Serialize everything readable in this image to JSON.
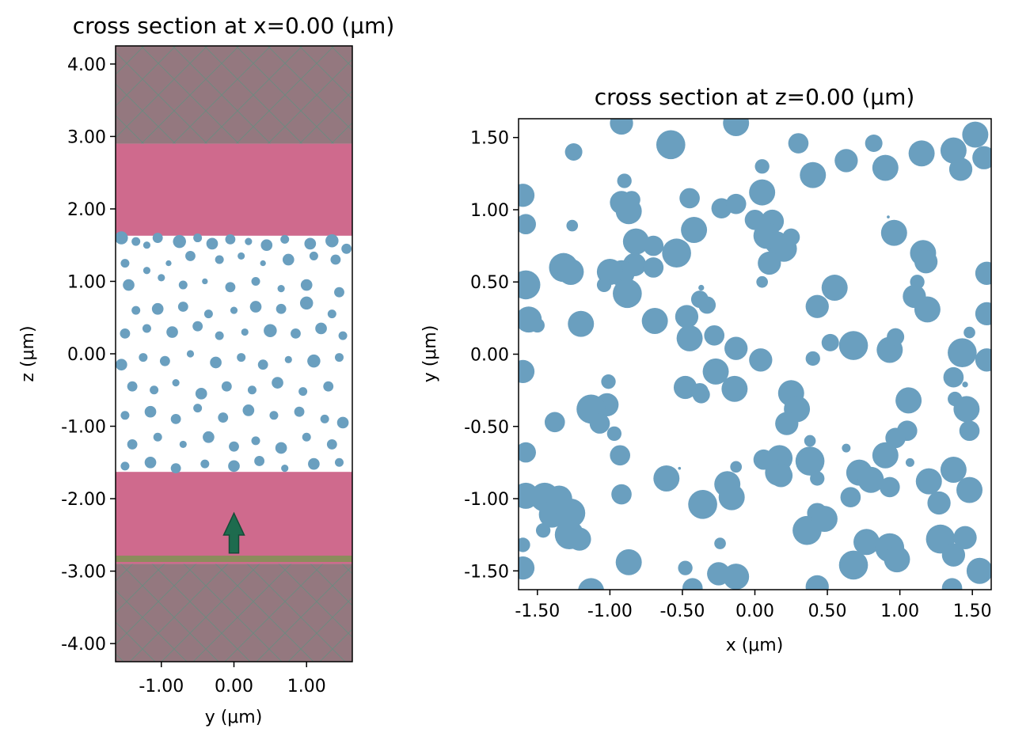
{
  "colors": {
    "circle": "#6a9fbf",
    "substrate": "#cf6a8d",
    "pml": "#94787f",
    "pml_hatch": "#5f8f7f",
    "source_line": "#8c8c5c",
    "source_arrow": "#1e6b4e"
  },
  "chart_data": [
    {
      "type": "scatter",
      "title": "cross section at x=0.00 (μm)",
      "xlabel": "y (μm)",
      "ylabel": "z (μm)",
      "xlim": [
        -1.63,
        1.63
      ],
      "ylim": [
        -4.25,
        4.25
      ],
      "xticks": [
        -1.0,
        0.0,
        1.0
      ],
      "xtick_labels": [
        "-1.00",
        "0.00",
        "1.00"
      ],
      "yticks": [
        4.0,
        3.0,
        2.0,
        1.0,
        0.0,
        -1.0,
        -2.0,
        -3.0,
        -4.0
      ],
      "ytick_labels": [
        "4.00",
        "3.00",
        "2.00",
        "1.00",
        "0.00",
        "-1.00",
        "-2.00",
        "-3.00",
        "-4.00"
      ],
      "regions": [
        {
          "kind": "pml",
          "y_from": 2.9,
          "y_to": 4.25
        },
        {
          "kind": "substrate",
          "y_from": 1.63,
          "y_to": 2.9
        },
        {
          "kind": "substrate",
          "y_from": -2.9,
          "y_to": -1.63
        },
        {
          "kind": "pml",
          "y_from": -4.25,
          "y_to": -2.9
        }
      ],
      "source": {
        "z": -2.83,
        "arrow_from": -2.75,
        "arrow_to": -2.2
      },
      "circles": [
        [
          -1.55,
          1.6,
          0.09
        ],
        [
          -1.35,
          1.55,
          0.06
        ],
        [
          -1.2,
          1.5,
          0.05
        ],
        [
          -1.05,
          1.6,
          0.07
        ],
        [
          -0.75,
          1.55,
          0.09
        ],
        [
          -0.5,
          1.6,
          0.06
        ],
        [
          -0.3,
          1.52,
          0.08
        ],
        [
          -0.05,
          1.58,
          0.07
        ],
        [
          0.2,
          1.55,
          0.05
        ],
        [
          0.45,
          1.5,
          0.08
        ],
        [
          0.7,
          1.58,
          0.06
        ],
        [
          1.05,
          1.52,
          0.08
        ],
        [
          1.35,
          1.56,
          0.09
        ],
        [
          1.55,
          1.45,
          0.07
        ],
        [
          -1.5,
          1.25,
          0.06
        ],
        [
          -1.2,
          1.15,
          0.05
        ],
        [
          -0.9,
          1.25,
          0.04
        ],
        [
          -0.6,
          1.35,
          0.07
        ],
        [
          -0.2,
          1.3,
          0.06
        ],
        [
          0.1,
          1.35,
          0.05
        ],
        [
          0.4,
          1.25,
          0.04
        ],
        [
          0.75,
          1.3,
          0.08
        ],
        [
          1.1,
          1.35,
          0.06
        ],
        [
          1.4,
          1.3,
          0.07
        ],
        [
          -1.45,
          0.95,
          0.08
        ],
        [
          -1.0,
          1.05,
          0.05
        ],
        [
          -0.7,
          0.95,
          0.06
        ],
        [
          -0.4,
          1.0,
          0.04
        ],
        [
          -0.05,
          0.92,
          0.07
        ],
        [
          0.3,
          1.0,
          0.06
        ],
        [
          0.65,
          0.9,
          0.05
        ],
        [
          1.0,
          0.95,
          0.08
        ],
        [
          1.45,
          0.85,
          0.07
        ],
        [
          -1.35,
          0.6,
          0.06
        ],
        [
          -1.05,
          0.62,
          0.08
        ],
        [
          -0.7,
          0.65,
          0.07
        ],
        [
          -0.35,
          0.55,
          0.06
        ],
        [
          0.0,
          0.6,
          0.05
        ],
        [
          0.3,
          0.65,
          0.08
        ],
        [
          0.65,
          0.62,
          0.07
        ],
        [
          1.0,
          0.7,
          0.09
        ],
        [
          1.35,
          0.55,
          0.06
        ],
        [
          -1.5,
          0.28,
          0.07
        ],
        [
          -1.2,
          0.35,
          0.06
        ],
        [
          -0.85,
          0.3,
          0.08
        ],
        [
          -0.5,
          0.38,
          0.07
        ],
        [
          -0.2,
          0.25,
          0.06
        ],
        [
          0.15,
          0.3,
          0.05
        ],
        [
          0.5,
          0.32,
          0.09
        ],
        [
          0.85,
          0.28,
          0.07
        ],
        [
          1.2,
          0.35,
          0.08
        ],
        [
          1.5,
          0.25,
          0.06
        ],
        [
          -1.55,
          -0.15,
          0.08
        ],
        [
          -1.25,
          -0.05,
          0.06
        ],
        [
          -0.95,
          -0.1,
          0.07
        ],
        [
          -0.6,
          0.0,
          0.05
        ],
        [
          -0.25,
          -0.12,
          0.08
        ],
        [
          0.1,
          -0.05,
          0.06
        ],
        [
          0.4,
          -0.15,
          0.07
        ],
        [
          0.75,
          -0.08,
          0.05
        ],
        [
          1.1,
          -0.1,
          0.09
        ],
        [
          1.45,
          -0.05,
          0.06
        ],
        [
          -1.4,
          -0.45,
          0.07
        ],
        [
          -1.1,
          -0.5,
          0.06
        ],
        [
          -0.8,
          -0.4,
          0.05
        ],
        [
          -0.45,
          -0.55,
          0.08
        ],
        [
          -0.1,
          -0.45,
          0.07
        ],
        [
          0.25,
          -0.5,
          0.06
        ],
        [
          0.6,
          -0.4,
          0.08
        ],
        [
          0.95,
          -0.52,
          0.06
        ],
        [
          1.3,
          -0.45,
          0.07
        ],
        [
          -1.5,
          -0.85,
          0.06
        ],
        [
          -1.15,
          -0.8,
          0.08
        ],
        [
          -0.8,
          -0.9,
          0.07
        ],
        [
          -0.5,
          -0.75,
          0.06
        ],
        [
          -0.15,
          -0.88,
          0.07
        ],
        [
          0.2,
          -0.78,
          0.08
        ],
        [
          0.55,
          -0.85,
          0.06
        ],
        [
          0.9,
          -0.8,
          0.07
        ],
        [
          1.25,
          -0.9,
          0.06
        ],
        [
          1.5,
          -0.95,
          0.08
        ],
        [
          -1.4,
          -1.25,
          0.07
        ],
        [
          -1.05,
          -1.15,
          0.06
        ],
        [
          -0.7,
          -1.25,
          0.05
        ],
        [
          -0.35,
          -1.15,
          0.08
        ],
        [
          0.0,
          -1.28,
          0.07
        ],
        [
          0.3,
          -1.2,
          0.06
        ],
        [
          0.65,
          -1.3,
          0.08
        ],
        [
          1.0,
          -1.15,
          0.06
        ],
        [
          1.35,
          -1.25,
          0.07
        ],
        [
          -1.5,
          -1.55,
          0.06
        ],
        [
          -1.15,
          -1.5,
          0.08
        ],
        [
          -0.8,
          -1.58,
          0.07
        ],
        [
          -0.4,
          -1.52,
          0.06
        ],
        [
          0.0,
          -1.55,
          0.08
        ],
        [
          0.35,
          -1.48,
          0.07
        ],
        [
          0.7,
          -1.58,
          0.05
        ],
        [
          1.1,
          -1.52,
          0.08
        ],
        [
          1.45,
          -1.5,
          0.06
        ]
      ]
    },
    {
      "type": "scatter",
      "title": "cross section at z=0.00 (μm)",
      "xlabel": "x (μm)",
      "ylabel": "y (μm)",
      "xlim": [
        -1.63,
        1.63
      ],
      "ylim": [
        -1.63,
        1.63
      ],
      "xticks": [
        -1.5,
        -1.0,
        -0.5,
        0.0,
        0.5,
        1.0,
        1.5
      ],
      "xtick_labels": [
        "-1.50",
        "-1.00",
        "-0.50",
        "0.00",
        "0.50",
        "1.00",
        "1.50"
      ],
      "yticks": [
        1.5,
        1.0,
        0.5,
        0.0,
        -0.5,
        -1.0,
        -1.5
      ],
      "ytick_labels": [
        "1.50",
        "1.00",
        "0.50",
        "0.00",
        "-0.50",
        "-1.00",
        "-1.50"
      ],
      "circles": [
        [
          -1.6,
          1.1,
          0.08
        ],
        [
          -1.58,
          0.9,
          0.07
        ],
        [
          -1.25,
          1.4,
          0.06
        ],
        [
          -0.92,
          1.6,
          0.08
        ],
        [
          -0.58,
          1.45,
          0.1
        ],
        [
          -0.13,
          1.6,
          0.09
        ],
        [
          0.05,
          1.3,
          0.05
        ],
        [
          0.3,
          1.46,
          0.07
        ],
        [
          0.4,
          1.24,
          0.09
        ],
        [
          0.63,
          1.34,
          0.08
        ],
        [
          0.82,
          1.46,
          0.06
        ],
        [
          0.9,
          1.29,
          0.09
        ],
        [
          1.15,
          1.39,
          0.09
        ],
        [
          1.37,
          1.41,
          0.09
        ],
        [
          1.42,
          1.28,
          0.08
        ],
        [
          1.52,
          1.52,
          0.09
        ],
        [
          1.58,
          1.36,
          0.08
        ],
        [
          -0.9,
          1.2,
          0.05
        ],
        [
          -0.85,
          1.07,
          0.06
        ],
        [
          -0.92,
          1.05,
          0.08
        ],
        [
          -0.87,
          0.99,
          0.09
        ],
        [
          -0.45,
          1.08,
          0.07
        ],
        [
          -0.23,
          1.01,
          0.07
        ],
        [
          -0.13,
          1.04,
          0.07
        ],
        [
          0.05,
          1.12,
          0.09
        ],
        [
          0.12,
          0.92,
          0.08
        ],
        [
          0.0,
          0.93,
          0.07
        ],
        [
          0.08,
          0.82,
          0.09
        ],
        [
          0.15,
          0.77,
          0.08
        ],
        [
          0.2,
          0.73,
          0.09
        ],
        [
          0.25,
          0.81,
          0.06
        ],
        [
          0.1,
          0.63,
          0.08
        ],
        [
          0.05,
          0.5,
          0.04
        ],
        [
          -0.42,
          0.86,
          0.09
        ],
        [
          -0.54,
          0.7,
          0.1
        ],
        [
          -0.7,
          0.75,
          0.07
        ],
        [
          -0.82,
          0.78,
          0.09
        ],
        [
          -0.83,
          0.62,
          0.08
        ],
        [
          -0.7,
          0.6,
          0.07
        ],
        [
          -0.92,
          0.56,
          0.09
        ],
        [
          -1.0,
          0.57,
          0.09
        ],
        [
          -1.04,
          0.48,
          0.05
        ],
        [
          -1.32,
          0.6,
          0.1
        ],
        [
          -1.27,
          0.57,
          0.09
        ],
        [
          -1.26,
          0.89,
          0.04
        ],
        [
          -1.58,
          0.48,
          0.1
        ],
        [
          -1.56,
          0.24,
          0.09
        ],
        [
          -1.5,
          0.2,
          0.05
        ],
        [
          -1.2,
          0.21,
          0.09
        ],
        [
          -0.88,
          0.42,
          0.1
        ],
        [
          -0.69,
          0.23,
          0.09
        ],
        [
          -0.47,
          0.26,
          0.08
        ],
        [
          -0.38,
          0.38,
          0.06
        ],
        [
          -0.33,
          0.34,
          0.06
        ],
        [
          -0.45,
          0.11,
          0.09
        ],
        [
          -0.28,
          0.13,
          0.07
        ],
        [
          -0.37,
          0.46,
          0.02
        ],
        [
          -0.13,
          0.04,
          0.08
        ],
        [
          0.04,
          -0.04,
          0.08
        ],
        [
          -0.27,
          -0.12,
          0.09
        ],
        [
          -0.48,
          -0.23,
          0.08
        ],
        [
          -0.38,
          -0.26,
          0.06
        ],
        [
          -0.14,
          -0.24,
          0.09
        ],
        [
          -0.37,
          -0.28,
          0.06
        ],
        [
          0.25,
          -0.27,
          0.09
        ],
        [
          0.29,
          -0.38,
          0.09
        ],
        [
          0.22,
          -0.48,
          0.08
        ],
        [
          0.4,
          -0.03,
          0.05
        ],
        [
          0.52,
          0.08,
          0.06
        ],
        [
          0.68,
          0.06,
          0.1
        ],
        [
          0.93,
          0.03,
          0.09
        ],
        [
          0.97,
          0.12,
          0.06
        ],
        [
          0.55,
          0.46,
          0.09
        ],
        [
          0.43,
          0.33,
          0.08
        ],
        [
          0.96,
          0.84,
          0.09
        ],
        [
          0.92,
          0.95,
          0.01
        ],
        [
          1.16,
          0.7,
          0.09
        ],
        [
          1.18,
          0.64,
          0.08
        ],
        [
          1.12,
          0.5,
          0.05
        ],
        [
          1.1,
          0.4,
          0.08
        ],
        [
          1.19,
          0.31,
          0.09
        ],
        [
          1.43,
          0.01,
          0.1
        ],
        [
          1.48,
          0.15,
          0.04
        ],
        [
          1.6,
          0.56,
          0.08
        ],
        [
          1.6,
          0.28,
          0.08
        ],
        [
          1.6,
          -0.04,
          0.08
        ],
        [
          1.37,
          -0.16,
          0.07
        ],
        [
          1.38,
          -0.31,
          0.05
        ],
        [
          1.46,
          -0.38,
          0.09
        ],
        [
          1.48,
          -0.53,
          0.07
        ],
        [
          1.45,
          -0.21,
          0.02
        ],
        [
          1.06,
          -0.32,
          0.09
        ],
        [
          1.05,
          -0.53,
          0.07
        ],
        [
          0.97,
          -0.58,
          0.07
        ],
        [
          0.9,
          -0.7,
          0.09
        ],
        [
          1.07,
          -0.75,
          0.03
        ],
        [
          0.63,
          -0.65,
          0.03
        ],
        [
          0.38,
          -0.6,
          0.04
        ],
        [
          0.38,
          -0.74,
          0.1
        ],
        [
          0.43,
          -0.86,
          0.05
        ],
        [
          0.17,
          -0.72,
          0.09
        ],
        [
          0.06,
          -0.73,
          0.07
        ],
        [
          0.16,
          -0.82,
          0.09
        ],
        [
          0.18,
          -0.84,
          0.08
        ],
        [
          -0.13,
          -0.78,
          0.04
        ],
        [
          -0.19,
          -0.9,
          0.09
        ],
        [
          -0.16,
          -0.99,
          0.09
        ],
        [
          -0.36,
          -1.04,
          0.1
        ],
        [
          -0.61,
          -0.86,
          0.09
        ],
        [
          -0.52,
          -0.79,
          0.01
        ],
        [
          -0.93,
          -0.7,
          0.07
        ],
        [
          -0.92,
          -0.97,
          0.07
        ],
        [
          -0.97,
          -0.55,
          0.05
        ],
        [
          -1.01,
          -0.19,
          0.05
        ],
        [
          -1.02,
          -0.35,
          0.08
        ],
        [
          -1.13,
          -0.38,
          0.1
        ],
        [
          -1.07,
          -0.48,
          0.07
        ],
        [
          -1.38,
          -0.47,
          0.07
        ],
        [
          -1.6,
          -0.12,
          0.08
        ],
        [
          -1.58,
          -0.68,
          0.07
        ],
        [
          -1.58,
          -0.98,
          0.09
        ],
        [
          -1.45,
          -0.99,
          0.1
        ],
        [
          -1.35,
          -1.0,
          0.09
        ],
        [
          -1.4,
          -1.11,
          0.09
        ],
        [
          -1.46,
          -1.22,
          0.05
        ],
        [
          -1.6,
          -1.32,
          0.05
        ],
        [
          -1.6,
          -1.48,
          0.08
        ],
        [
          -1.27,
          -1.1,
          0.1
        ],
        [
          -1.28,
          -1.25,
          0.1
        ],
        [
          -1.21,
          -1.28,
          0.08
        ],
        [
          -0.87,
          -1.44,
          0.09
        ],
        [
          -1.13,
          -1.64,
          0.09
        ],
        [
          -0.48,
          -1.48,
          0.05
        ],
        [
          -0.43,
          -1.62,
          0.07
        ],
        [
          -0.24,
          -1.31,
          0.04
        ],
        [
          -0.25,
          -1.52,
          0.08
        ],
        [
          -0.13,
          -1.54,
          0.09
        ],
        [
          0.36,
          -1.22,
          0.1
        ],
        [
          0.43,
          -1.1,
          0.07
        ],
        [
          0.48,
          -1.14,
          0.09
        ],
        [
          0.43,
          -1.61,
          0.08
        ],
        [
          0.66,
          -0.99,
          0.07
        ],
        [
          0.72,
          -0.82,
          0.09
        ],
        [
          0.8,
          -0.87,
          0.09
        ],
        [
          0.93,
          -0.92,
          0.07
        ],
        [
          0.68,
          -1.46,
          0.1
        ],
        [
          0.77,
          -1.3,
          0.09
        ],
        [
          0.93,
          -1.34,
          0.1
        ],
        [
          0.98,
          -1.42,
          0.09
        ],
        [
          1.2,
          -0.88,
          0.09
        ],
        [
          1.27,
          -1.03,
          0.08
        ],
        [
          1.37,
          -0.8,
          0.09
        ],
        [
          1.48,
          -0.94,
          0.09
        ],
        [
          1.28,
          -1.28,
          0.1
        ],
        [
          1.37,
          -1.39,
          0.08
        ],
        [
          1.45,
          -1.27,
          0.08
        ],
        [
          1.55,
          -1.5,
          0.09
        ],
        [
          1.36,
          -1.62,
          0.07
        ]
      ]
    }
  ]
}
